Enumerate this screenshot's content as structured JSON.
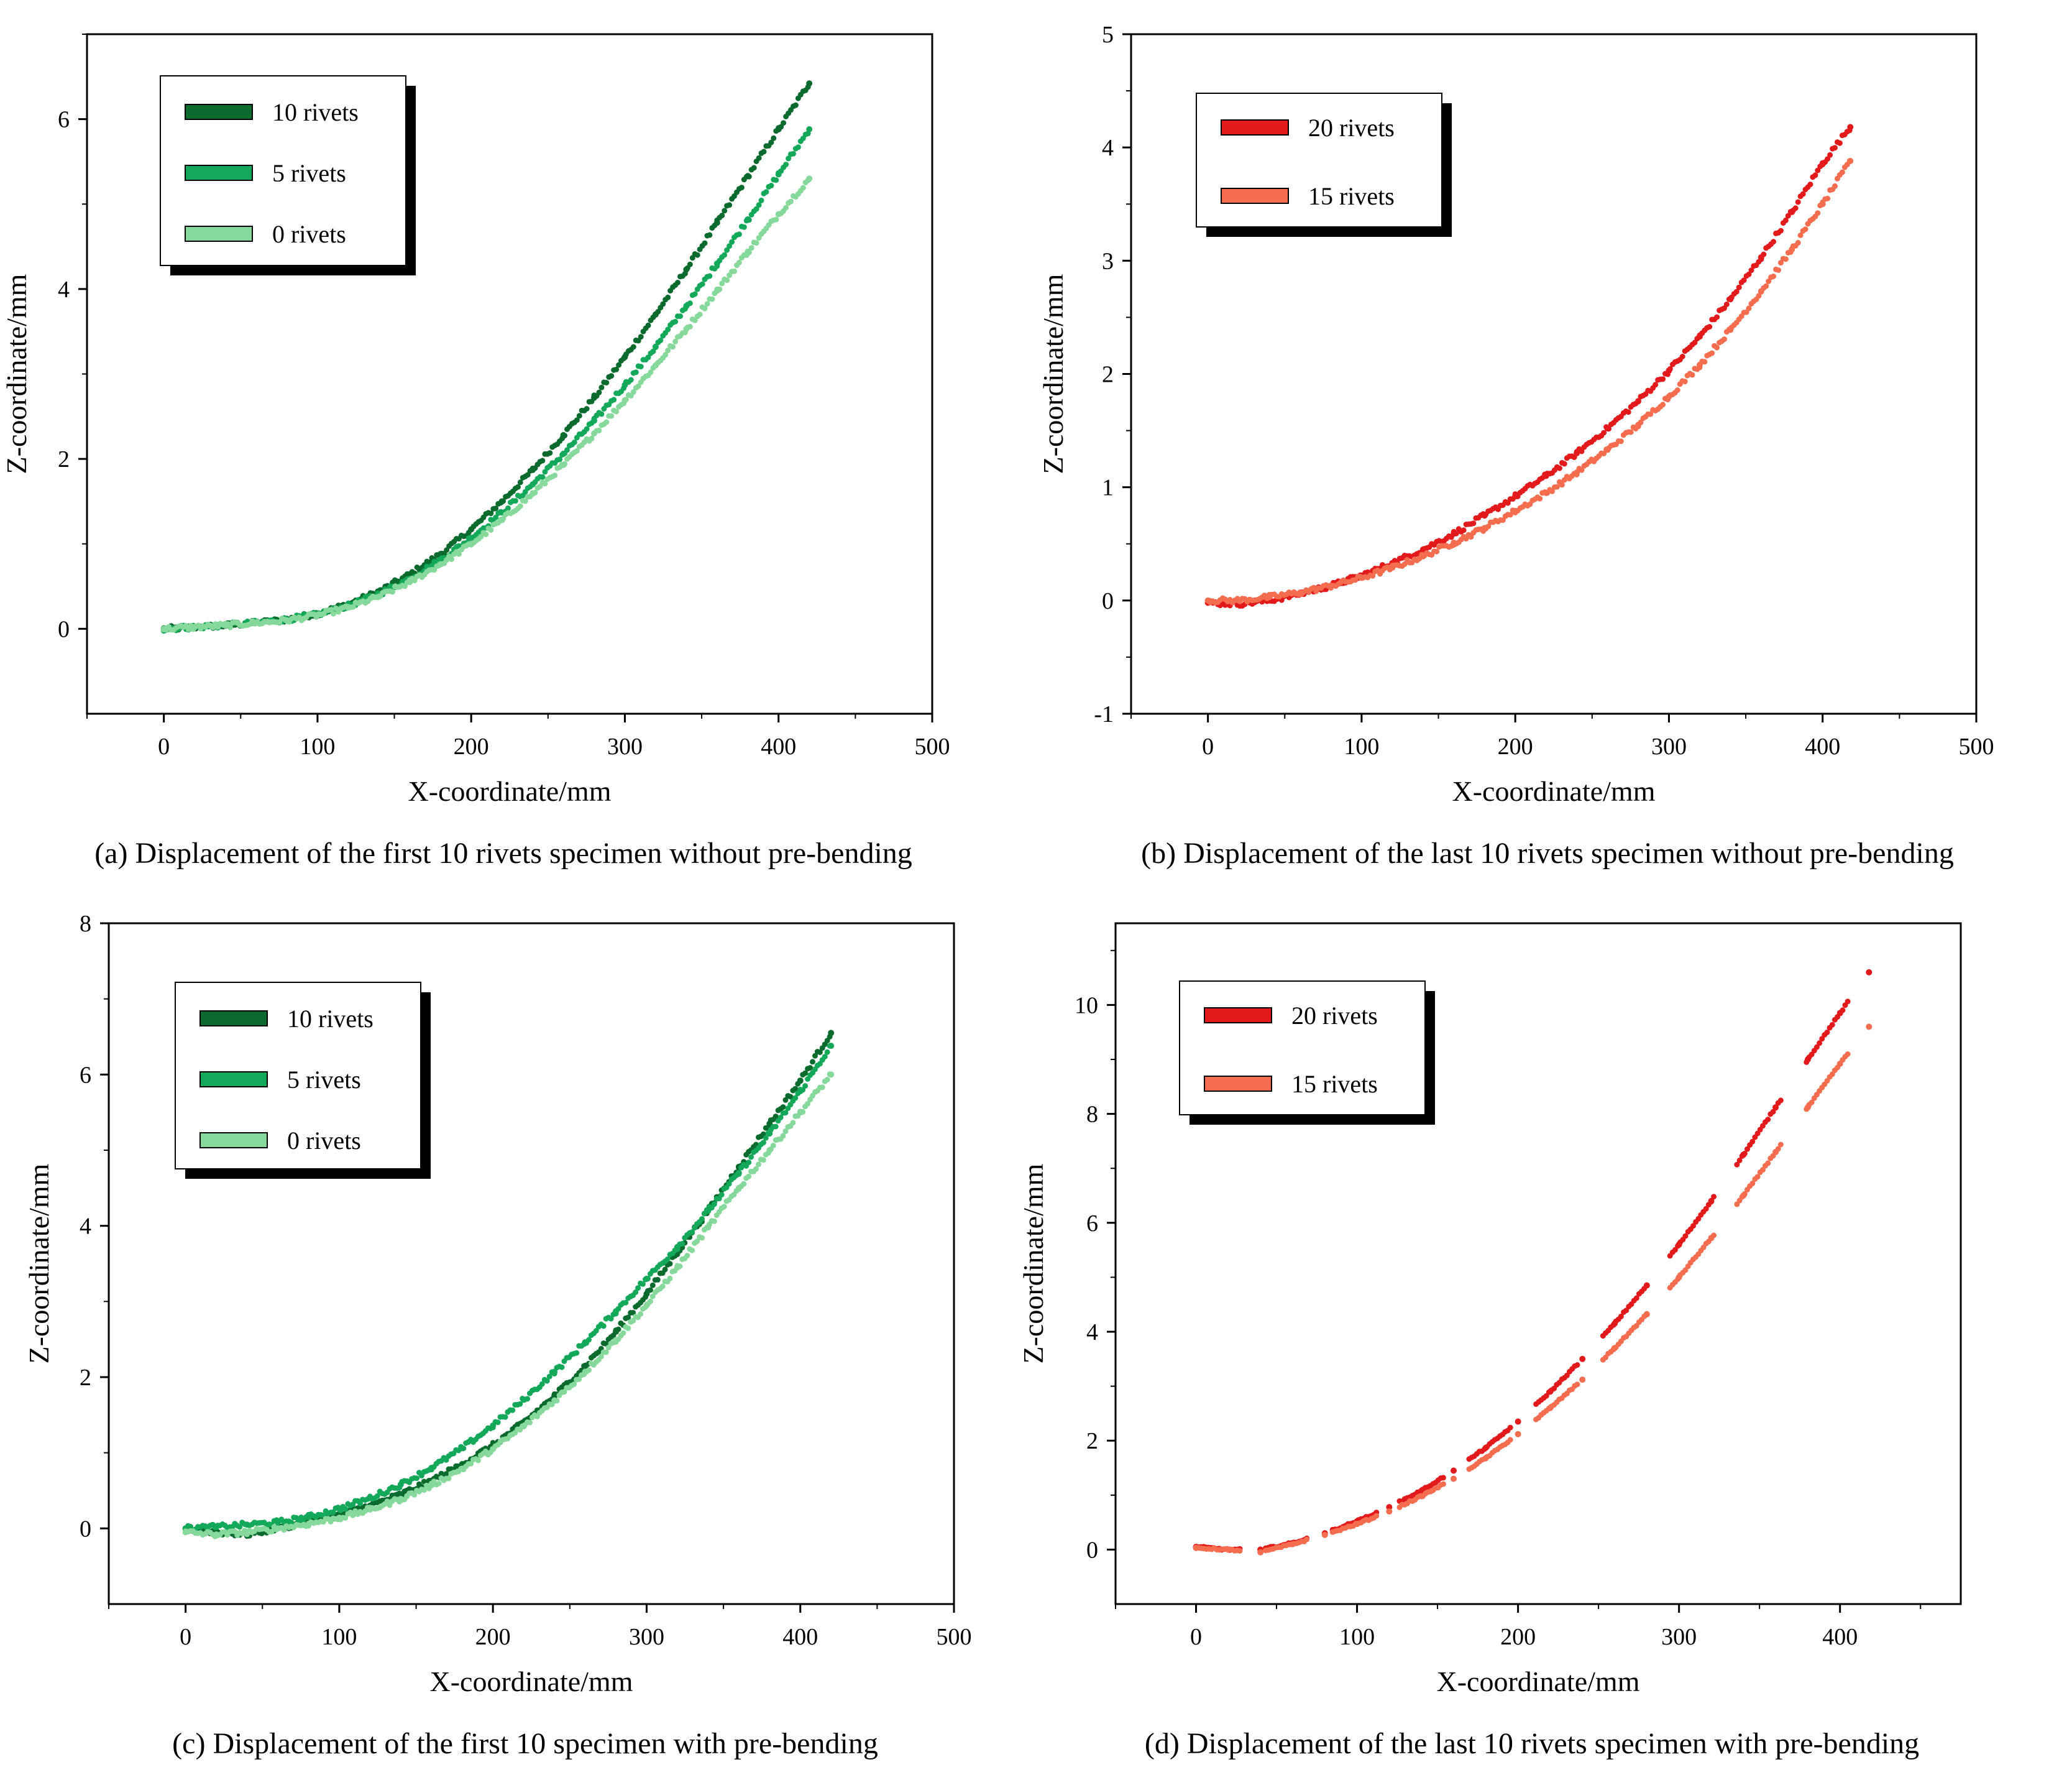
{
  "colors": {
    "c10": "#0b6b2e",
    "c5": "#14a85a",
    "c0": "#86d99a",
    "c20": "#e31a1c",
    "c15": "#f46d4e"
  },
  "chart_data": [
    {
      "id": "a",
      "type": "scatter",
      "caption": "(a) Displacement of the first 10 rivets specimen without pre-bending",
      "xlabel": "X-coordinate/mm",
      "ylabel": "Z-coordinate/mm",
      "xlim": [
        -50,
        500
      ],
      "ylim": [
        -1,
        7
      ],
      "xticks": [
        0,
        100,
        200,
        300,
        400,
        500
      ],
      "yticks": [
        0,
        2,
        4,
        6
      ],
      "grid": false,
      "legend_position": "top-left",
      "series": [
        {
          "name": "10 rivets",
          "color_key": "c10",
          "x": [
            0,
            20,
            40,
            60,
            80,
            100,
            120,
            140,
            160,
            180,
            200,
            220,
            240,
            260,
            280,
            300,
            320,
            340,
            360,
            380,
            400,
            420
          ],
          "y": [
            0.0,
            0.02,
            0.04,
            0.07,
            0.11,
            0.18,
            0.29,
            0.44,
            0.64,
            0.88,
            1.17,
            1.5,
            1.87,
            2.28,
            2.72,
            3.2,
            3.7,
            4.23,
            4.78,
            5.33,
            5.88,
            6.42
          ]
        },
        {
          "name": "5 rivets",
          "color_key": "c5",
          "x": [
            0,
            20,
            40,
            60,
            80,
            100,
            120,
            140,
            160,
            180,
            200,
            220,
            240,
            260,
            280,
            300,
            320,
            340,
            360,
            380,
            400,
            420
          ],
          "y": [
            0.0,
            0.02,
            0.04,
            0.07,
            0.11,
            0.17,
            0.27,
            0.41,
            0.59,
            0.81,
            1.07,
            1.37,
            1.7,
            2.06,
            2.45,
            2.87,
            3.32,
            3.8,
            4.3,
            4.82,
            5.35,
            5.88
          ]
        },
        {
          "name": "0 rivets",
          "color_key": "c0",
          "x": [
            0,
            20,
            40,
            60,
            80,
            100,
            120,
            140,
            160,
            180,
            200,
            220,
            240,
            260,
            280,
            300,
            320,
            340,
            360,
            380,
            400,
            420
          ],
          "y": [
            0.0,
            0.02,
            0.04,
            0.07,
            0.1,
            0.16,
            0.25,
            0.38,
            0.55,
            0.76,
            1.0,
            1.28,
            1.59,
            1.93,
            2.3,
            2.69,
            3.1,
            3.53,
            3.98,
            4.44,
            4.88,
            5.3
          ]
        }
      ]
    },
    {
      "id": "b",
      "type": "scatter",
      "caption": "(b) Displacement of the last 10 rivets specimen without pre-bending",
      "xlabel": "X-coordinate/mm",
      "ylabel": "Z-coordinate/mm",
      "xlim": [
        -50,
        500
      ],
      "ylim": [
        -1,
        5
      ],
      "xticks": [
        0,
        100,
        200,
        300,
        400,
        500
      ],
      "yticks": [
        -1,
        0,
        1,
        2,
        3,
        4,
        5
      ],
      "grid": false,
      "legend_position": "top-left",
      "series": [
        {
          "name": "20 rivets",
          "color_key": "c20",
          "x": [
            0,
            20,
            40,
            60,
            80,
            100,
            120,
            140,
            160,
            180,
            200,
            220,
            240,
            260,
            280,
            300,
            320,
            340,
            360,
            380,
            400,
            418
          ],
          "y": [
            -0.02,
            -0.03,
            0.0,
            0.06,
            0.13,
            0.22,
            0.33,
            0.45,
            0.59,
            0.75,
            0.92,
            1.1,
            1.3,
            1.52,
            1.76,
            2.03,
            2.33,
            2.66,
            3.03,
            3.43,
            3.86,
            4.18
          ]
        },
        {
          "name": "15 rivets",
          "color_key": "c15",
          "x": [
            0,
            20,
            40,
            60,
            80,
            100,
            120,
            140,
            160,
            180,
            200,
            220,
            240,
            260,
            280,
            300,
            320,
            340,
            360,
            380,
            400,
            418
          ],
          "y": [
            0.0,
            0.0,
            0.03,
            0.07,
            0.13,
            0.2,
            0.29,
            0.39,
            0.51,
            0.64,
            0.79,
            0.95,
            1.13,
            1.33,
            1.55,
            1.8,
            2.08,
            2.39,
            2.73,
            3.1,
            3.5,
            3.88
          ]
        }
      ]
    },
    {
      "id": "c",
      "type": "scatter",
      "caption": "(c) Displacement of the first 10 specimen with pre-bending",
      "xlabel": "X-coordinate/mm",
      "ylabel": "Z-coordinate/mm",
      "xlim": [
        -50,
        500
      ],
      "ylim": [
        -1,
        8
      ],
      "xticks": [
        0,
        100,
        200,
        300,
        400,
        500
      ],
      "yticks": [
        0,
        2,
        4,
        6,
        8
      ],
      "grid": false,
      "legend_position": "top-left",
      "series": [
        {
          "name": "10 rivets",
          "color_key": "c10",
          "x": [
            0,
            20,
            40,
            60,
            80,
            100,
            120,
            140,
            160,
            180,
            200,
            220,
            240,
            260,
            280,
            300,
            320,
            340,
            360,
            380,
            400,
            420
          ],
          "y": [
            0.0,
            -0.05,
            -0.08,
            0.0,
            0.08,
            0.18,
            0.3,
            0.45,
            0.63,
            0.85,
            1.1,
            1.4,
            1.75,
            2.15,
            2.6,
            3.1,
            3.65,
            4.2,
            4.78,
            5.35,
            5.92,
            6.55
          ]
        },
        {
          "name": "5 rivets",
          "color_key": "c5",
          "x": [
            0,
            20,
            40,
            60,
            80,
            100,
            120,
            140,
            160,
            180,
            200,
            220,
            240,
            260,
            280,
            300,
            320,
            340,
            360,
            380,
            400,
            420
          ],
          "y": [
            0.0,
            0.02,
            0.05,
            0.08,
            0.15,
            0.26,
            0.4,
            0.58,
            0.8,
            1.06,
            1.36,
            1.7,
            2.07,
            2.46,
            2.87,
            3.3,
            3.72,
            4.2,
            4.7,
            5.22,
            5.78,
            6.38
          ]
        },
        {
          "name": "0 rivets",
          "color_key": "c0",
          "x": [
            0,
            20,
            40,
            60,
            80,
            100,
            120,
            140,
            160,
            180,
            200,
            220,
            240,
            260,
            280,
            300,
            320,
            340,
            360,
            380,
            400,
            420
          ],
          "y": [
            -0.05,
            -0.08,
            -0.05,
            0.0,
            0.06,
            0.14,
            0.25,
            0.39,
            0.57,
            0.79,
            1.05,
            1.35,
            1.69,
            2.07,
            2.49,
            2.95,
            3.45,
            3.98,
            4.5,
            5.0,
            5.5,
            6.0
          ]
        }
      ]
    },
    {
      "id": "d",
      "type": "scatter",
      "caption": "(d) Displacement of the last 10 rivets specimen with pre-bending",
      "xlabel": "X-coordinate/mm",
      "ylabel": "Z-coordinate/mm",
      "xlim": [
        -50,
        475
      ],
      "ylim": [
        -1,
        11.5
      ],
      "xticks": [
        0,
        100,
        200,
        300,
        400
      ],
      "yticks": [
        0,
        2,
        4,
        6,
        8,
        10
      ],
      "grid": false,
      "legend_position": "top-left",
      "series": [
        {
          "name": "20 rivets",
          "color_key": "c20",
          "x": [
            0,
            20,
            40,
            60,
            80,
            100,
            120,
            140,
            160,
            180,
            200,
            220,
            240,
            260,
            280,
            300,
            320,
            340,
            360,
            380,
            400,
            418
          ],
          "y": [
            0.05,
            0.0,
            0.0,
            0.12,
            0.3,
            0.52,
            0.78,
            1.08,
            1.45,
            1.87,
            2.35,
            2.9,
            3.5,
            4.15,
            4.85,
            5.6,
            6.4,
            7.25,
            8.12,
            9.0,
            9.85,
            10.6
          ]
        },
        {
          "name": "15 rivets",
          "color_key": "c15",
          "x": [
            0,
            20,
            40,
            60,
            80,
            100,
            120,
            140,
            160,
            180,
            200,
            220,
            240,
            260,
            280,
            300,
            320,
            340,
            360,
            380,
            400,
            418
          ],
          "y": [
            0.03,
            0.0,
            -0.05,
            0.1,
            0.27,
            0.47,
            0.7,
            0.98,
            1.3,
            1.68,
            2.12,
            2.6,
            3.12,
            3.7,
            4.32,
            5.0,
            5.72,
            6.5,
            7.3,
            8.12,
            8.92,
            9.6
          ]
        }
      ]
    }
  ]
}
